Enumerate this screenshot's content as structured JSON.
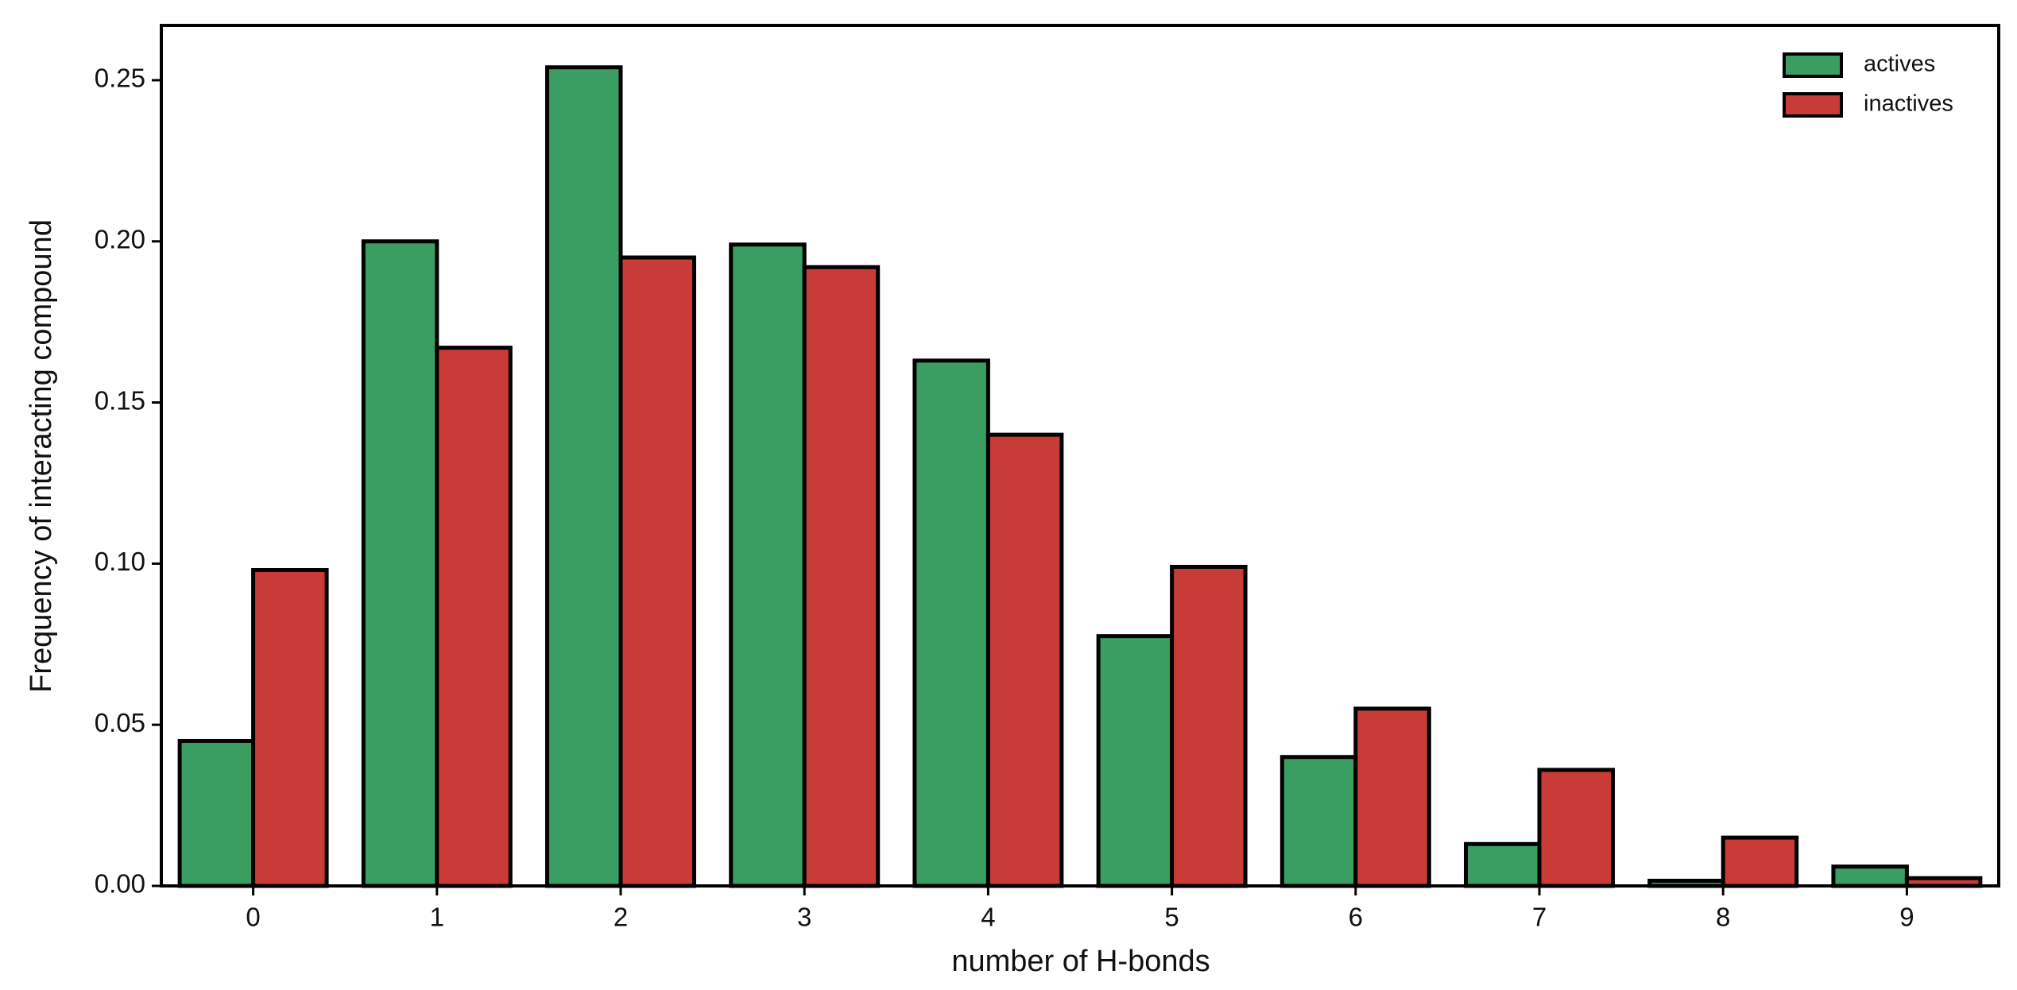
{
  "chart_data": {
    "type": "bar",
    "x_label": "number of H-bonds",
    "y_label": "Frequency of interacting compound",
    "categories": [
      "0",
      "1",
      "2",
      "3",
      "4",
      "5",
      "6",
      "7",
      "8",
      "9"
    ],
    "series": [
      {
        "name": "actives",
        "color": "#3a9e62",
        "values": [
          0.045,
          0.2,
          0.254,
          0.199,
          0.163,
          0.0775,
          0.04,
          0.013,
          0.0016,
          0.006
        ]
      },
      {
        "name": "inactives",
        "color": "#c93b36",
        "values": [
          0.098,
          0.167,
          0.195,
          0.192,
          0.14,
          0.099,
          0.055,
          0.036,
          0.015,
          0.0024
        ]
      }
    ],
    "ylim": [
      0,
      0.267
    ],
    "yticks": [
      {
        "value": 0,
        "label": "0.00"
      },
      {
        "value": 0.05,
        "label": "0.05"
      },
      {
        "value": 0.1,
        "label": "0.10"
      },
      {
        "value": 0.15,
        "label": "0.15"
      },
      {
        "value": 0.2,
        "label": "0.20"
      },
      {
        "value": 0.25,
        "label": "0.25"
      }
    ],
    "legend": "upper right",
    "grid": false
  }
}
